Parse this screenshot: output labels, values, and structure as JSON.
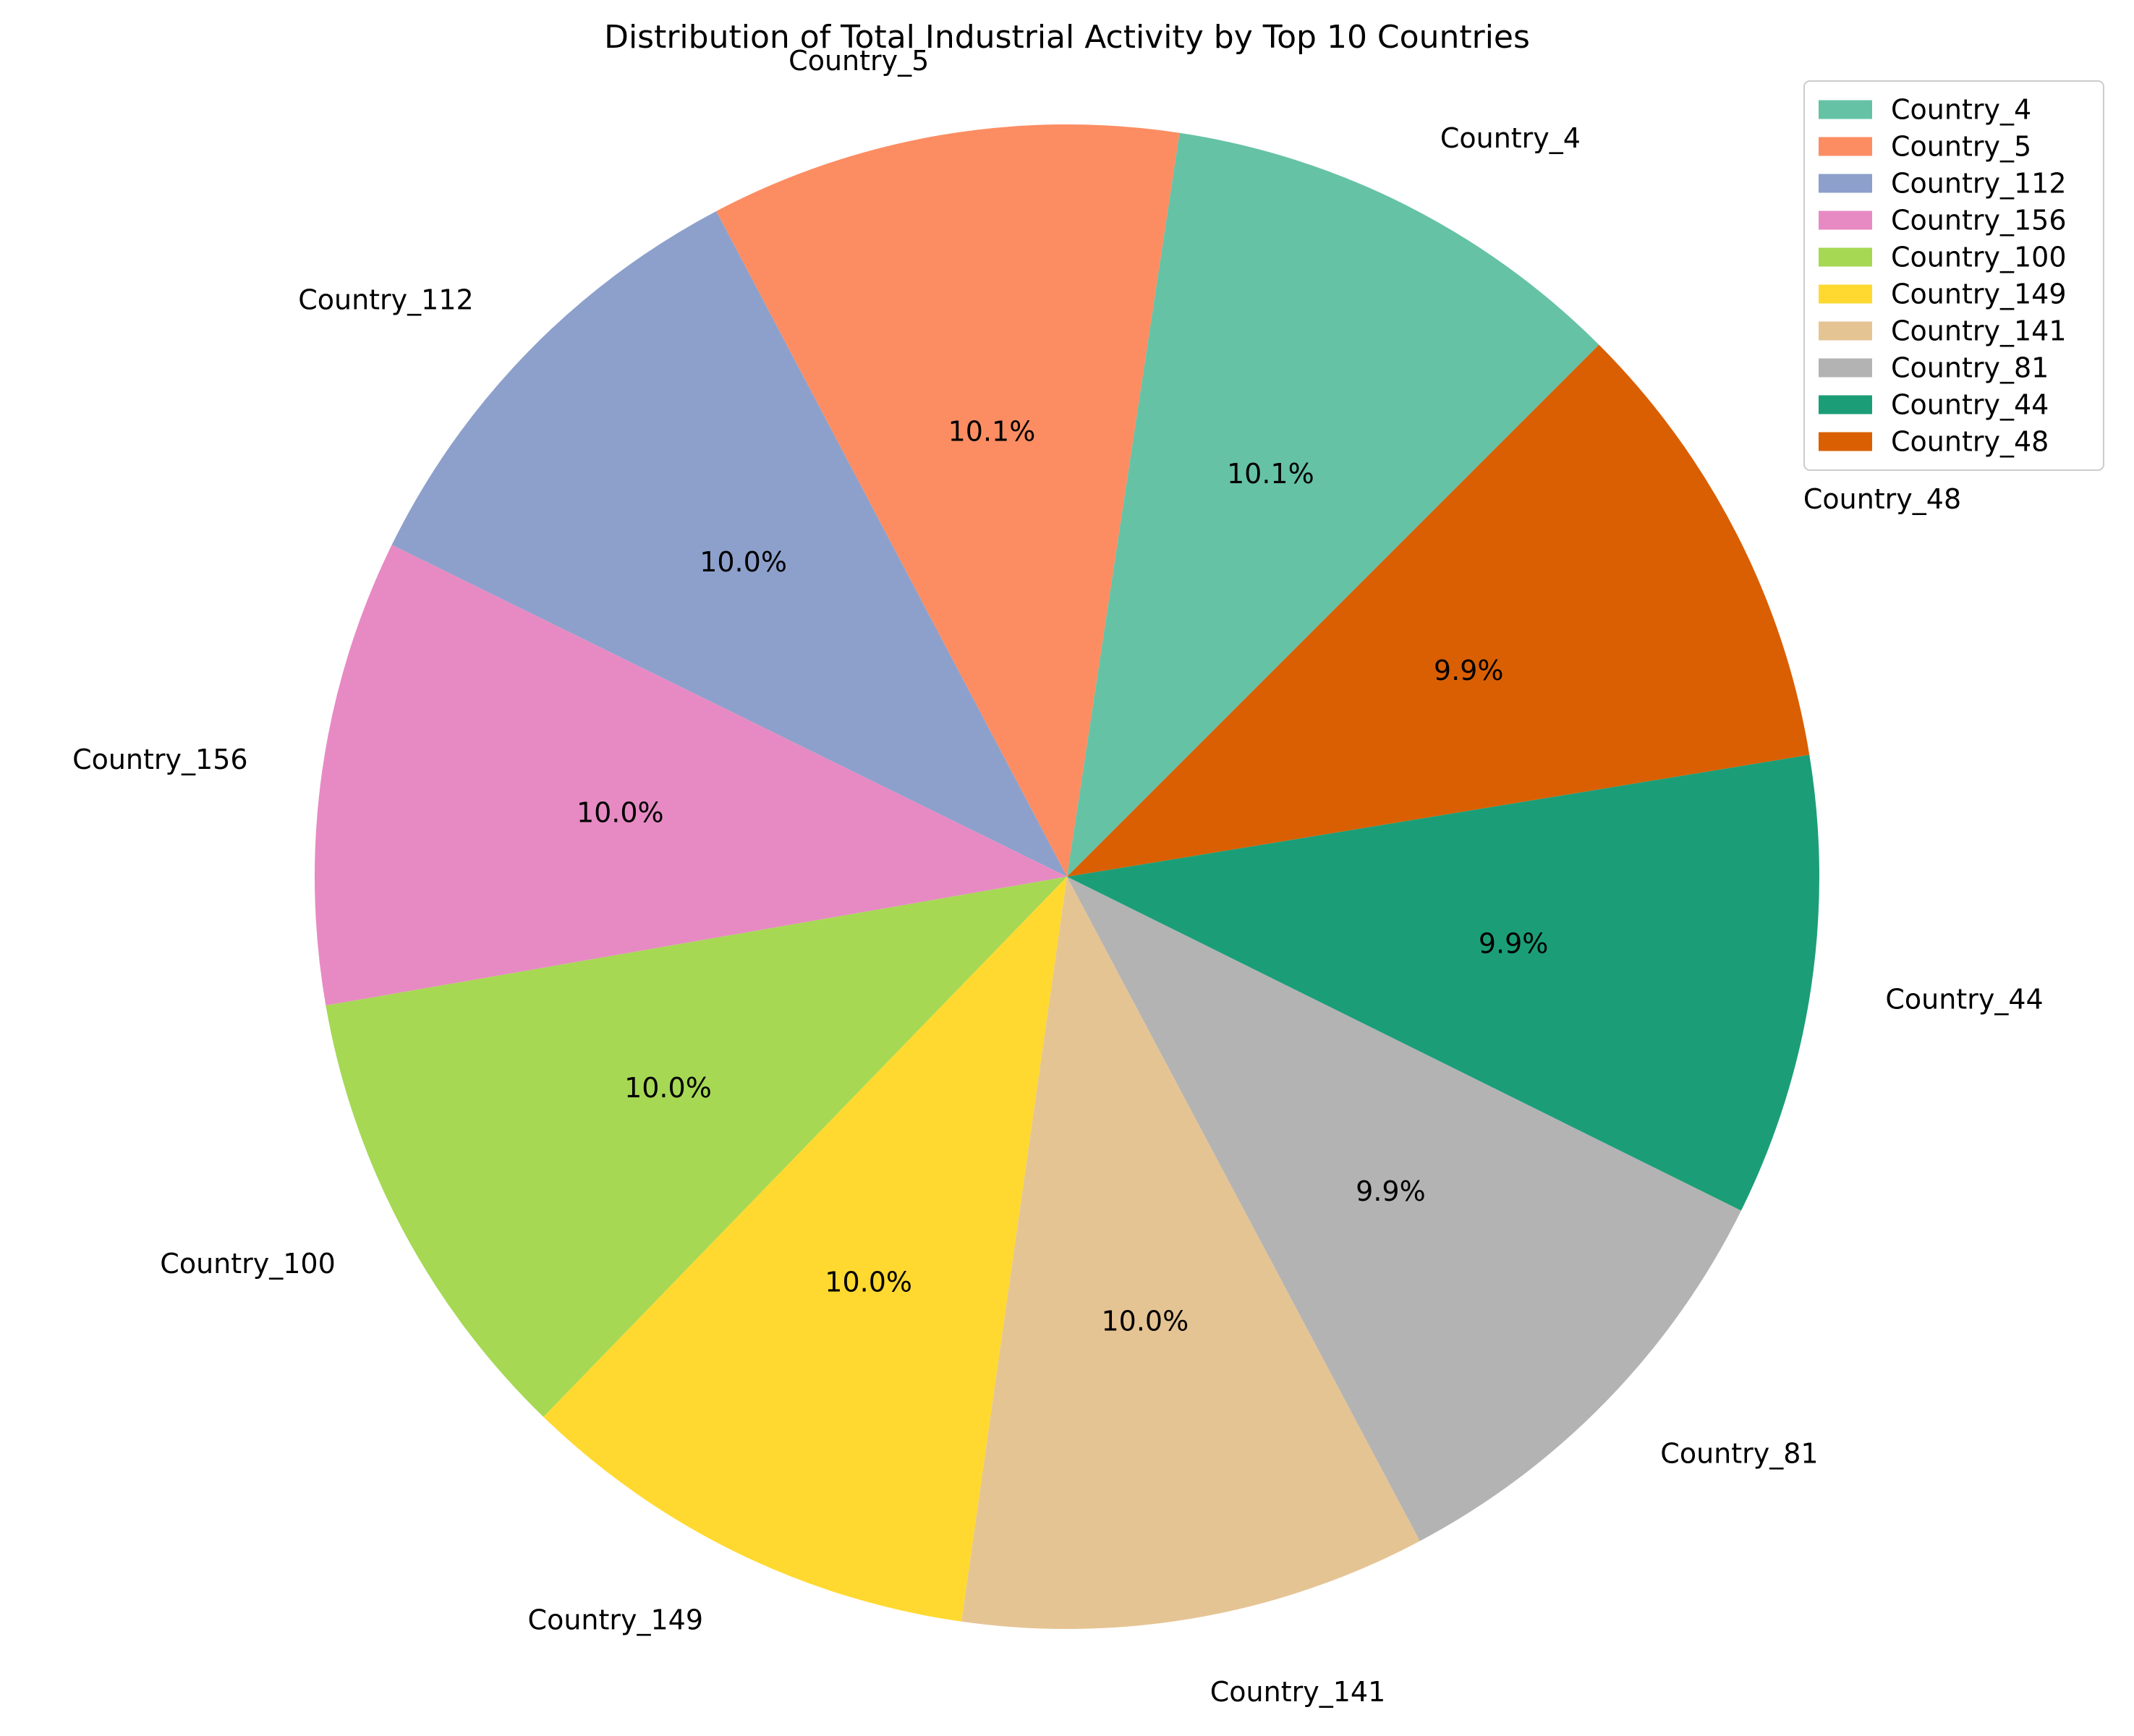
{
  "chart_data": {
    "type": "pie",
    "title": "Distribution of Total Industrial Activity by Top 10 Countries",
    "categories": [
      "Country_4",
      "Country_5",
      "Country_112",
      "Country_156",
      "Country_100",
      "Country_149",
      "Country_141",
      "Country_81",
      "Country_44",
      "Country_48"
    ],
    "values": [
      10.1,
      10.1,
      10.0,
      10.0,
      10.0,
      10.0,
      10.0,
      9.9,
      9.9,
      9.9
    ],
    "percent_labels": [
      "10.1%",
      "10.1%",
      "10.0%",
      "10.0%",
      "10.0%",
      "10.0%",
      "10.0%",
      "9.9%",
      "9.9%",
      "9.9%"
    ],
    "colors": [
      "#66c2a5",
      "#fc8d62",
      "#8da0cb",
      "#e78ac3",
      "#a6d854",
      "#ffd92f",
      "#e5c494",
      "#b3b3b3",
      "#1b9e77",
      "#d95f02"
    ],
    "legend": {
      "placement": "top-right",
      "entries": [
        "Country_4",
        "Country_5",
        "Country_112",
        "Country_156",
        "Country_100",
        "Country_149",
        "Country_141",
        "Country_81",
        "Country_44",
        "Country_48"
      ]
    },
    "start_angle_deg": 45,
    "direction": "counterclockwise"
  }
}
